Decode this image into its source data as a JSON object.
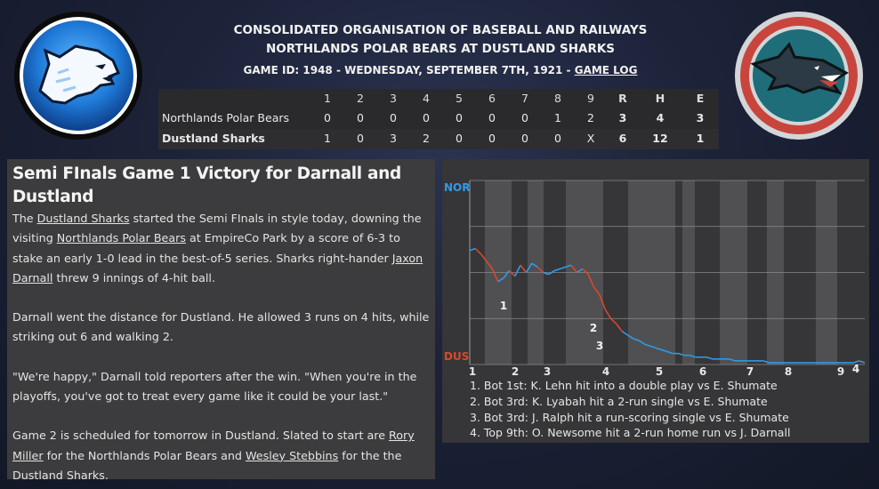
{
  "header": {
    "org": "CONSOLIDATED ORGANISATION OF BASEBALL AND RAILWAYS",
    "matchup": "NORTHLANDS POLAR BEARS AT DUSTLAND SHARKS",
    "game_info": "GAME ID: 1948 - WEDNESDAY, SEPTEMBER 7TH, 1921 - ",
    "game_log": "GAME LOG"
  },
  "logos": {
    "away": "polar-bear-logo",
    "home": "shark-logo"
  },
  "linescore": {
    "columns": [
      "1",
      "2",
      "3",
      "4",
      "5",
      "6",
      "7",
      "8",
      "9",
      "R",
      "H",
      "E"
    ],
    "rows": [
      {
        "team": "Northlands Polar Bears",
        "values": [
          "0",
          "0",
          "0",
          "0",
          "0",
          "0",
          "0",
          "1",
          "2",
          "3",
          "4",
          "3"
        ]
      },
      {
        "team": "Dustland Sharks",
        "values": [
          "1",
          "0",
          "3",
          "2",
          "0",
          "0",
          "0",
          "0",
          "X",
          "6",
          "12",
          "1"
        ]
      }
    ]
  },
  "article": {
    "headline": "Semi FInals Game 1 Victory for Darnall and Dustland",
    "p1": {
      "a": "The ",
      "l1": "Dustland Sharks",
      "b": " started the Semi FInals in style today, downing the visiting ",
      "l2": "Northlands Polar Bears",
      "c": " at EmpireCo Park by a score of 6-3 to stake an early 1-0 lead in the best-of-5 series. Sharks right-hander ",
      "l3": "Jaxon Darnall",
      "d": " threw 9 innings of 4-hit ball."
    },
    "p2": "Darnall went the distance for Dustland. He allowed 3 runs on 4 hits, while striking out 6 and walking 2.",
    "p3": "\"We're happy,\" Darnall told reporters after the win. \"When you're in the playoffs, you've got to treat every game like it could be your last.\"",
    "p4": {
      "a": "Game 2 is scheduled for tomorrow in Dustland. Slated to start are ",
      "l1": "Rory Miller",
      "b": " for the Northlands Polar Bears and ",
      "l2": "Wesley Stebbins",
      "c": " for the the Dustland Sharks."
    }
  },
  "chart_data": {
    "type": "line",
    "title": "",
    "top_label": "NOR",
    "bottom_label": "DUS",
    "colors": {
      "away": "#2f9be8",
      "home": "#d9482b",
      "shade": "#5a5a5c",
      "bg": "#363638"
    },
    "inning_labels": [
      "1",
      "2",
      "3",
      "4",
      "5",
      "6",
      "7",
      "8",
      "9"
    ],
    "ylim": [
      0,
      100
    ],
    "series": [
      {
        "values": [
          [
            0,
            62
          ],
          [
            1,
            63
          ],
          [
            2,
            60
          ],
          [
            3,
            56
          ],
          [
            4,
            52
          ],
          [
            5,
            45
          ],
          [
            6,
            47
          ],
          [
            7,
            51
          ],
          [
            8,
            48
          ],
          [
            9,
            54
          ],
          [
            10,
            50
          ],
          [
            11,
            55
          ],
          [
            12,
            53
          ],
          [
            13,
            50
          ],
          [
            14,
            49
          ],
          [
            15,
            51
          ],
          [
            16,
            52
          ],
          [
            17,
            53
          ],
          [
            18,
            54
          ],
          [
            19,
            50
          ],
          [
            20,
            52
          ],
          [
            21,
            49
          ],
          [
            22,
            42
          ],
          [
            23,
            38
          ],
          [
            24,
            30
          ],
          [
            25,
            25
          ],
          [
            26,
            22
          ],
          [
            27,
            18
          ],
          [
            28,
            16
          ],
          [
            29,
            14
          ],
          [
            30,
            13
          ],
          [
            31,
            11
          ],
          [
            32,
            10
          ],
          [
            33,
            9
          ],
          [
            34,
            8
          ],
          [
            35,
            7
          ],
          [
            36,
            6
          ],
          [
            37,
            6
          ],
          [
            38,
            5
          ],
          [
            39,
            5
          ],
          [
            40,
            4
          ],
          [
            41,
            4
          ],
          [
            42,
            4
          ],
          [
            43,
            3
          ],
          [
            44,
            3
          ],
          [
            45,
            3
          ],
          [
            46,
            3
          ],
          [
            47,
            2
          ],
          [
            48,
            2
          ],
          [
            49,
            2
          ],
          [
            50,
            2
          ],
          [
            51,
            2
          ],
          [
            52,
            2
          ],
          [
            53,
            1
          ],
          [
            54,
            1
          ],
          [
            55,
            1
          ],
          [
            56,
            1
          ],
          [
            57,
            1
          ],
          [
            58,
            1
          ],
          [
            59,
            1
          ],
          [
            60,
            1
          ],
          [
            61,
            1
          ],
          [
            62,
            1
          ],
          [
            63,
            1
          ],
          [
            64,
            1
          ],
          [
            65,
            1
          ],
          [
            66,
            1
          ],
          [
            67,
            1
          ],
          [
            68,
            1
          ],
          [
            69,
            2
          ],
          [
            70,
            1
          ]
        ]
      }
    ],
    "markers": [
      "1",
      "2",
      "3",
      "4"
    ],
    "events": [
      "1. Bot 1st: K. Lehn hit into a double play vs E. Shumate",
      "2. Bot 3rd: K. Lyabah hit a 2-run single vs E. Shumate",
      "3. Bot 3rd: J. Ralph hit a run-scoring single vs E. Shumate",
      "4. Top 9th: O. Newsome hit a 2-run home run vs J. Darnall"
    ]
  }
}
